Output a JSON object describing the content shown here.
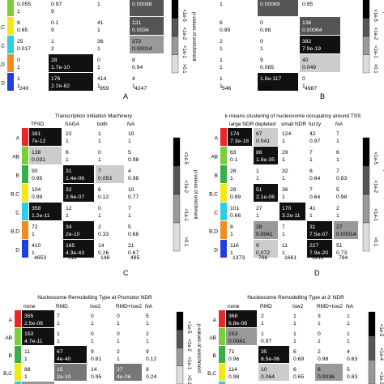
{
  "legend": {
    "left_label": "p-values of enrichment",
    "left_ticks": [
      "<1e-5",
      "<1e-2",
      "<1e-1",
      ">0.1"
    ],
    "right_label": "p-values of enrichment",
    "right_ticks": [
      "<1e-5",
      "<1e-2",
      "<1e-1",
      ">0.1"
    ],
    "bottom_right_label": "p-values of enrichment",
    "bottom_right_ticks": [
      "<1e-5",
      "<1e-4",
      "<1e-2"
    ]
  },
  "panels": {
    "A": {
      "caption": "A",
      "rows": [
        "",
        "B,C",
        "C",
        "B,D",
        "D"
      ],
      "row_colors": [
        "#7CCD3C",
        "#F5E616",
        "#2ECCE8",
        "#F28C1E",
        "#1F3FE0"
      ],
      "cells": [
        [
          [
            "0.055",
            "1",
            "#ffffff"
          ],
          [
            "0.97",
            "9",
            "#ffffff"
          ],
          [
            "1",
            "",
            "#ffffff"
          ],
          [
            "0.00088",
            "",
            "#555555"
          ]
        ],
        [
          [
            "8",
            "0.65",
            "#ffffff"
          ],
          [
            "0.1",
            "9",
            "#ffffff"
          ],
          [
            "41",
            "1",
            "#ffffff"
          ],
          [
            "121",
            "0.0034",
            "#555555"
          ]
        ],
        [
          [
            "25",
            "0.017",
            "#ffffff"
          ],
          [
            "1",
            "2",
            "#ffffff"
          ],
          [
            "36",
            "1",
            "#ffffff"
          ],
          [
            "372",
            "0.00014",
            "#999999"
          ]
        ],
        [
          [
            "0",
            "1",
            "#ffffff"
          ],
          [
            "28",
            "1.7e-10",
            "#111111"
          ],
          [
            "0",
            "1",
            "#ffffff"
          ],
          [
            "8",
            "0.94",
            "#ffffff"
          ]
        ],
        [
          [
            "1",
            "1",
            "#ffffff"
          ],
          [
            "176",
            "2.2e-82",
            "#111111"
          ],
          [
            "414",
            "1",
            "#ffffff"
          ],
          [
            "4",
            "1",
            "#ffffff"
          ]
        ]
      ],
      "totals": [
        "240",
        "349",
        "959",
        "4247"
      ]
    },
    "B": {
      "caption": "B",
      "cells": [
        [
          [
            "1",
            "",
            "#ffffff"
          ],
          [
            "0.00069",
            "",
            "#555555"
          ],
          [
            "0.95",
            "",
            "#ffffff"
          ]
        ],
        [
          [
            "6",
            "0.99",
            "#ffffff"
          ],
          [
            "0",
            "0.98",
            "#ffffff"
          ],
          [
            "136",
            "0.00064",
            "#555555"
          ]
        ],
        [
          [
            "2",
            "1",
            "#ffffff"
          ],
          [
            "0",
            "1",
            "#ffffff"
          ],
          [
            "382",
            "7.9e-19",
            "#111111"
          ]
        ],
        [
          [
            "1",
            "1",
            "#ffffff"
          ],
          [
            "9",
            "0.085",
            "#ffffff"
          ],
          [
            "40",
            "0.049",
            "#cccccc"
          ]
        ],
        [
          [
            "1",
            "1",
            "#ffffff"
          ],
          [
            "1.8e-117",
            "",
            "#111111"
          ],
          [
            "0",
            "1",
            "#ffffff"
          ]
        ]
      ],
      "totals": [
        "546",
        "262",
        "4987"
      ]
    },
    "C": {
      "caption": "C",
      "title": "Transcription Initiation Machinery",
      "columns": [
        "TFIID",
        "SAGA",
        "both",
        "NA"
      ],
      "rows": [
        "A",
        "AB",
        "B",
        "B,C",
        "C",
        "B,D",
        "D"
      ],
      "row_colors": [
        "#E8262B",
        "#7CCD3C",
        "#38B04A",
        "#F5E616",
        "#2ECCE8",
        "#F28C1E",
        "#1F3FE0"
      ],
      "cells": [
        [
          [
            "381",
            "7e-12",
            "#111111"
          ],
          [
            "22",
            "1",
            "#ffffff"
          ],
          [
            "1",
            "1",
            "#ffffff"
          ],
          [
            "10",
            "1",
            "#ffffff"
          ]
        ],
        [
          [
            "138",
            "0.031",
            "#cccccc"
          ],
          [
            "6",
            "1",
            "#ffffff"
          ],
          [
            "0",
            "1",
            "#ffffff"
          ],
          [
            "5",
            "0.98",
            "#ffffff"
          ]
        ],
        [
          [
            "90",
            "0.95",
            "#ffffff"
          ],
          [
            "31",
            "1.4e-06",
            "#111111"
          ],
          [
            "7",
            "0.053",
            "#cccccc"
          ],
          [
            "4",
            "0.98",
            "#ffffff"
          ]
        ],
        [
          [
            "104",
            "0.99",
            "#ffffff"
          ],
          [
            "32",
            "2.6e-07",
            "#111111"
          ],
          [
            "6",
            "0.12",
            "#ffffff"
          ],
          [
            "10",
            "0.77",
            "#ffffff"
          ]
        ],
        [
          [
            "358",
            "1.2e-11",
            "#111111"
          ],
          [
            "12",
            "1",
            "#ffffff"
          ],
          [
            "0",
            "1",
            "#ffffff"
          ],
          [
            "7",
            "1",
            "#ffffff"
          ]
        ],
        [
          [
            "72",
            "1",
            "#ffffff"
          ],
          [
            "34",
            "2e-10",
            "#111111"
          ],
          [
            "2",
            "0.33",
            "#ffffff"
          ],
          [
            "5",
            "0.68",
            "#ffffff"
          ]
        ],
        [
          [
            "410",
            "1",
            "#ffffff"
          ],
          [
            "165",
            "4.3e-43",
            "#111111"
          ],
          [
            "14",
            "0.26",
            "#ffffff"
          ],
          [
            "21",
            "0.67",
            "#ffffff"
          ]
        ]
      ],
      "totals": [
        "4653",
        "511",
        "146",
        "485"
      ]
    },
    "D": {
      "caption": "D",
      "title": "k-means clustering of nucleosome occupancy around TSS",
      "columns": [
        "large NDR",
        "depleted",
        "small NDR",
        "fuzzy",
        "NA"
      ],
      "cells": [
        [
          [
            "174",
            "7.3e-18",
            "#111111"
          ],
          [
            "67",
            "0.041",
            "#cccccc"
          ],
          [
            "124",
            "1",
            "#ffffff"
          ],
          [
            "42",
            "0.97",
            "#ffffff"
          ],
          [
            "7",
            "1",
            "#ffffff"
          ]
        ],
        [
          [
            "63",
            "0.1",
            "#ffffff"
          ],
          [
            "86",
            "1.8e-35",
            "#111111"
          ],
          [
            "29",
            "1",
            "#ffffff"
          ],
          [
            "7",
            "1",
            "#ffffff"
          ],
          [
            "6",
            "1",
            "#ffffff"
          ]
        ],
        [
          [
            "26",
            "1",
            "#ffffff"
          ],
          [
            "1",
            "1",
            "#ffffff"
          ],
          [
            "32",
            "1",
            "#ffffff"
          ],
          [
            "6",
            "0.64",
            "#ffffff"
          ],
          [
            "7",
            "0.83",
            "#ffffff"
          ]
        ],
        [
          [
            "29",
            "0.99",
            "#ffffff"
          ],
          [
            "51",
            "2.1e-06",
            "#111111"
          ],
          [
            "36",
            "1",
            "#ffffff"
          ],
          [
            "7",
            "0.64",
            "#ffffff"
          ],
          [
            "5",
            "0.98",
            "#ffffff"
          ]
        ],
        [
          [
            "101",
            "0.66",
            "#ffffff"
          ],
          [
            "27",
            "1",
            "#ffffff"
          ],
          [
            "170",
            "3.2e-11",
            "#111111"
          ],
          [
            "41",
            "1",
            "#ffffff"
          ],
          [
            "2",
            "1",
            "#ffffff"
          ]
        ],
        [
          [
            "8",
            "1",
            "#ffffff"
          ],
          [
            "28",
            "0.0041",
            "#999999"
          ],
          [
            "7",
            "1",
            "#ffffff"
          ],
          [
            "31",
            "7.5e-07",
            "#111111"
          ],
          [
            "27",
            "0.00014",
            "#999999"
          ]
        ],
        [
          [
            "116",
            "1",
            "#ffffff"
          ],
          [
            "9",
            "0.072",
            "#cccccc"
          ],
          [
            "11",
            "1",
            "#ffffff"
          ],
          [
            "227",
            "7.9e-20",
            "#111111"
          ],
          [
            "51",
            "0.73",
            "#ffffff"
          ]
        ]
      ],
      "totals": [
        "1373",
        "766",
        "1661",
        "1211",
        "784"
      ]
    },
    "E": {
      "title": "Nucleosome Remodelling Type at Promotor NDR",
      "columns": [
        "none",
        "RMD",
        "Isw2",
        "RMD+Isw2",
        "NA"
      ],
      "rows": [
        "A",
        "AB",
        "B",
        "B,C",
        "C"
      ],
      "row_colors": [
        "#E8262B",
        "#7CCD3C",
        "#38B04A",
        "#F5E616",
        "#2ECCE8"
      ],
      "cells": [
        [
          [
            "355",
            "2.5e-06",
            "#111111"
          ],
          [
            "7",
            "1",
            "#ffffff"
          ],
          [
            "0",
            "1",
            "#ffffff"
          ],
          [
            "0",
            "1",
            "#ffffff"
          ],
          [
            "5",
            "1",
            "#ffffff"
          ]
        ],
        [
          [
            "153",
            "4.7e-11",
            "#111111"
          ],
          [
            "1",
            "1",
            "#ffffff"
          ],
          [
            "0",
            "1",
            "#ffffff"
          ],
          [
            "0",
            "1",
            "#ffffff"
          ],
          [
            "2",
            "1",
            "#ffffff"
          ]
        ],
        [
          [
            "11",
            "1",
            "#ffffff"
          ],
          [
            "67",
            "4e-40",
            "#111111"
          ],
          [
            "9",
            "0.81",
            "#ffffff"
          ],
          [
            "2",
            "1",
            "#ffffff"
          ],
          [
            "9",
            "0.12",
            "#ffffff"
          ]
        ],
        [
          [
            "88",
            "1",
            "#ffffff"
          ],
          [
            "15",
            "2e-10",
            "#777777"
          ],
          [
            "14",
            "0.95",
            "#ffffff"
          ],
          [
            "27",
            "4e-06",
            "#777777"
          ],
          [
            "8",
            "0.24",
            "#ffffff"
          ]
        ],
        [
          [
            "318",
            "0.079",
            "#999999"
          ],
          [
            "1",
            "0.98",
            "#ffffff"
          ],
          [
            "4",
            "0.93",
            "#ffffff"
          ],
          [
            "1",
            "0.98",
            "#ffffff"
          ],
          [
            "4",
            "0.92",
            "#ffffff"
          ]
        ]
      ]
    },
    "F": {
      "title": "Nucleosome Remodelling Type at 3' NDR",
      "columns": [
        "none",
        "RMD",
        "Isw2",
        "RMD+Isw2",
        "NA"
      ],
      "cells": [
        [
          [
            "368",
            "6.8e-06",
            "#111111"
          ],
          [
            "2",
            "1",
            "#ffffff"
          ],
          [
            "1",
            "1",
            "#ffffff"
          ],
          [
            "3",
            "1",
            "#ffffff"
          ],
          [
            "1",
            "1",
            "#ffffff"
          ]
        ],
        [
          [
            "153",
            "0.0041",
            "#999999"
          ],
          [
            "1",
            "0.97",
            "#ffffff"
          ],
          [
            "1",
            "1",
            "#ffffff"
          ],
          [
            "0",
            "1",
            "#ffffff"
          ],
          [
            "1",
            "1",
            "#ffffff"
          ]
        ],
        [
          [
            "71",
            "0.96",
            "#ffffff"
          ],
          [
            "35",
            "6.5e-06",
            "#111111"
          ],
          [
            "6",
            "0.69",
            "#ffffff"
          ],
          [
            "2",
            "0.98",
            "#ffffff"
          ],
          [
            "4",
            "0.63",
            "#ffffff"
          ]
        ],
        [
          [
            "114",
            "0.98",
            "#ffffff"
          ],
          [
            "10",
            "0.064",
            "#cccccc"
          ],
          [
            "6",
            "0.65",
            "#ffffff"
          ],
          [
            "6",
            "0.0036",
            "#999999"
          ],
          [
            "5",
            "0.83",
            "#ffffff"
          ]
        ],
        [
          [
            "322",
            "0.63",
            "#ffffff"
          ],
          [
            "0",
            "1",
            "#ffffff"
          ],
          [
            "3",
            "1",
            "#ffffff"
          ],
          [
            "0",
            "1",
            "#ffffff"
          ],
          [
            "4",
            "1",
            "#ffffff"
          ]
        ]
      ]
    }
  }
}
